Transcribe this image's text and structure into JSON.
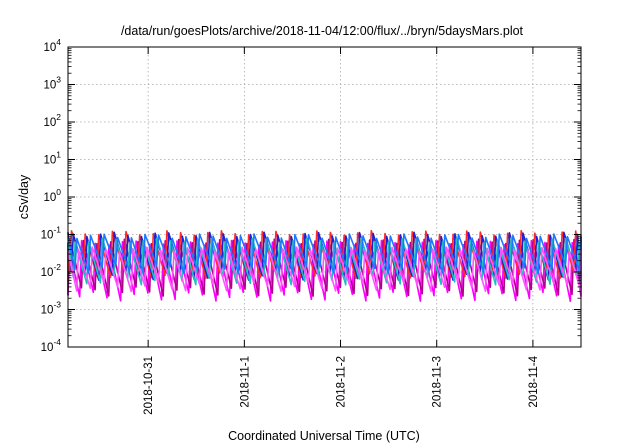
{
  "chart_data": {
    "type": "line",
    "title": "/data/run/goesPlots/archive/2018-11-04/12:00/flux/../bryn/5daysMars.plot",
    "xlabel": "Coordinated Universal Time (UTC)",
    "ylabel": "cSv/day",
    "y_scale": "log",
    "ylim_exponents": [
      -4,
      4
    ],
    "yticks": [
      {
        "base": "10",
        "exp": "4"
      },
      {
        "base": "10",
        "exp": "3"
      },
      {
        "base": "10",
        "exp": "2"
      },
      {
        "base": "10",
        "exp": "1"
      },
      {
        "base": "10",
        "exp": "0"
      },
      {
        "base": "10",
        "exp": "-1"
      },
      {
        "base": "10",
        "exp": "-2"
      },
      {
        "base": "10",
        "exp": "-3"
      },
      {
        "base": "10",
        "exp": "-4"
      }
    ],
    "xlim": [
      "2018-10-30 04:00",
      "2018-11-04 12:00"
    ],
    "xticks": [
      "2018-10-31",
      "2018-11-1",
      "2018-11-2",
      "2018-11-3",
      "2018-11-4"
    ],
    "grid": true,
    "sawtooth_period_hours": 3.4,
    "series": [
      {
        "color": "#ff00ff",
        "peak": 0.06,
        "trough": 0.0022
      },
      {
        "color": "#b0008c",
        "peak": 0.065,
        "trough": 0.003
      },
      {
        "color": "#ff2a2a",
        "peak": 0.11,
        "trough": 0.009
      },
      {
        "color": "#2020d0",
        "peak": 0.1,
        "trough": 0.008
      },
      {
        "color": "#1fbfbf",
        "peak": 0.07,
        "trough": 0.006
      },
      {
        "color": "#1e78ff",
        "peak": 0.09,
        "trough": 0.012
      },
      {
        "color": "#ff55ff",
        "peak": 0.04,
        "trough": 0.004
      }
    ]
  }
}
